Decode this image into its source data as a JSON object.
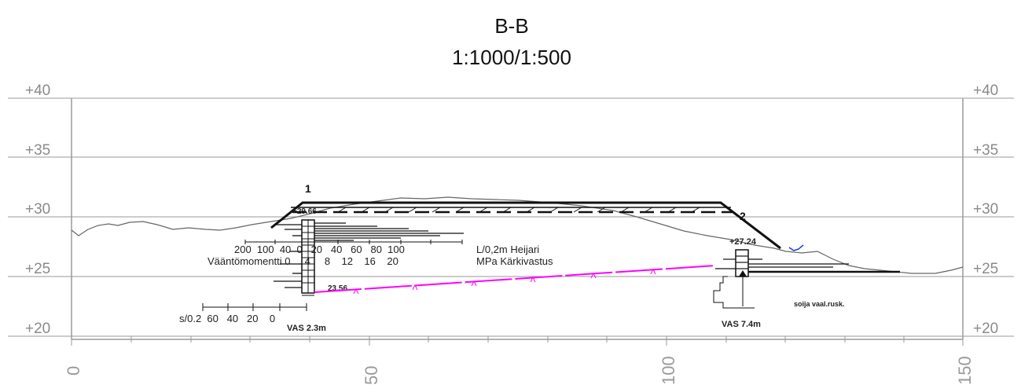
{
  "title": "B-B",
  "scale": "1:1000/1:500",
  "elevations": [
    "+40",
    "+35",
    "+30",
    "+25",
    "+20"
  ],
  "stations": [
    "0",
    "50",
    "100",
    "150"
  ],
  "points": {
    "p1": "1",
    "p2": "2"
  },
  "boreholes": {
    "left": {
      "top_level": "+29.66",
      "bottom_level": "23.56",
      "name": "VAS 2.3m",
      "scale_heijari": "200  100  40  0   20   40   60   80  100",
      "heijari_label": "L/0,2m  Heijari",
      "scale_mpa": "Vääntömomentti 0     4     8    12    16    20",
      "mpa_label": "MPa  Kärkivastus",
      "settle_label": "s/0.2  60   40   20    0"
    },
    "right": {
      "top_level": "+27.24",
      "name": "VAS 7.4m",
      "soil": "soija vaal.rusk."
    }
  }
}
